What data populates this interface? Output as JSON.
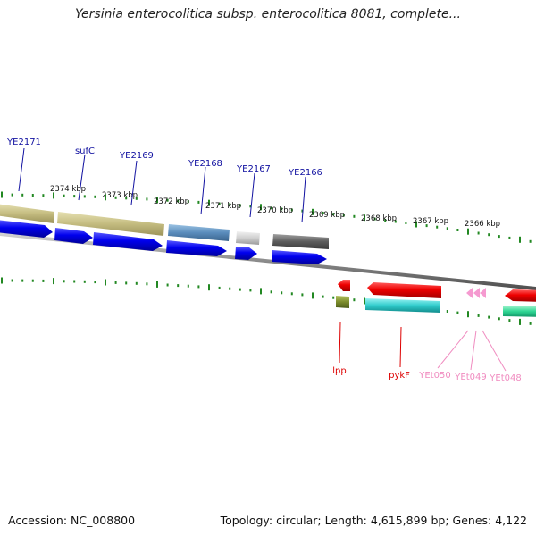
{
  "title": "Yersinia enterocolitica subsp. enterocolitica 8081, complete...",
  "footer": {
    "accession": "Accession: NC_008800",
    "summary": "Topology: circular; Length: 4,615,899 bp; Genes: 4,122"
  },
  "kbp_labels": [
    "2374 kbp",
    "2373 kbp",
    "2372 kbp",
    "2371 kbp",
    "2370 kbp",
    "2369 kbp",
    "2368 kbp",
    "2367 kbp",
    "2366 kbp"
  ],
  "forward_labels": [
    "YE2171",
    "sufC",
    "YE2169",
    "YE2168",
    "YE2167",
    "YE2166"
  ],
  "reverse_labels": [
    "lpp",
    "pykF",
    "YEt050",
    "YEt049",
    "YEt048"
  ],
  "colors": {
    "forward_label": "#1010a0",
    "reverse_label": "#dd0000",
    "trna_label": "#f08cc0",
    "cds_forward": "#0000ee",
    "cds_reverse": "#ee0000",
    "tick": "#228822",
    "backbone": "#888888"
  }
}
